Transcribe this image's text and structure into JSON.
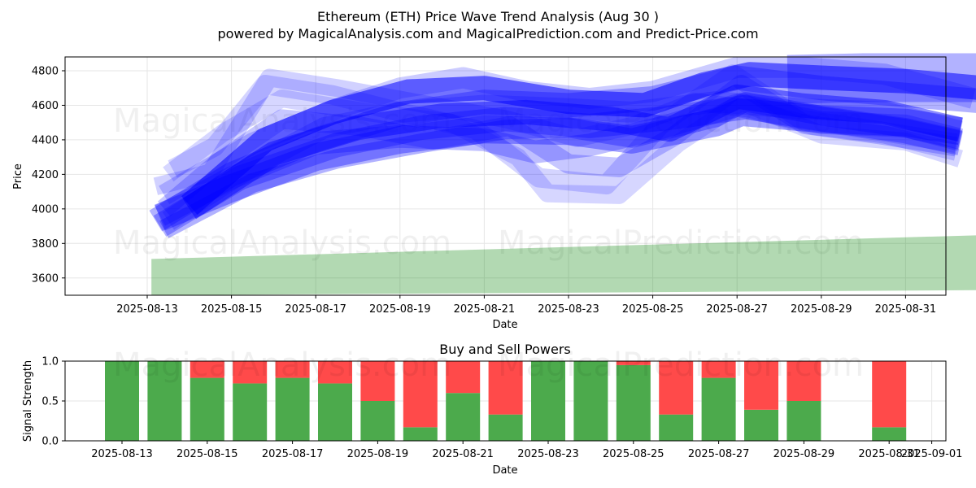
{
  "chart_data": [
    {
      "type": "area",
      "title_line1": "Ethereum (ETH) Price Wave Trend Analysis (Aug 30 )",
      "title_line2": "powered by MagicalAnalysis.com and MagicalPrediction.com and Predict-Price.com",
      "xlabel": "Date",
      "ylabel": "Price",
      "x_ticks": [
        "2025-08-13",
        "2025-08-15",
        "2025-08-17",
        "2025-08-19",
        "2025-08-21",
        "2025-08-23",
        "2025-08-25",
        "2025-08-27",
        "2025-08-29",
        "2025-08-31"
      ],
      "y_ticks": [
        "3600",
        "3800",
        "4000",
        "4200",
        "4400",
        "4600",
        "4800"
      ],
      "ylim": [
        3500,
        4880
      ],
      "xlim_days": [
        -0.25,
        20.3
      ],
      "grid": true,
      "watermarks": [
        "MagicalAnalysis.com",
        "MagicalPrediction.com"
      ],
      "band_color": "#0000ff",
      "trend_color": "#008000",
      "bands": [
        {
          "opacity": 0.18,
          "width": 22,
          "points": [
            [
              0.2,
              4130
            ],
            [
              1.5,
              4210
            ],
            [
              2.9,
              4760
            ],
            [
              4.5,
              4700
            ],
            [
              6.5,
              4610
            ],
            [
              8.5,
              4520
            ],
            [
              10.2,
              4410
            ],
            [
              11.5,
              4480
            ],
            [
              13,
              4620
            ],
            [
              14.3,
              4580
            ],
            [
              15.8,
              4480
            ],
            [
              17.5,
              4430
            ],
            [
              19.2,
              4330
            ]
          ]
        },
        {
          "opacity": 0.17,
          "width": 24,
          "points": [
            [
              0.6,
              4230
            ],
            [
              1.6,
              4360
            ],
            [
              2.8,
              4720
            ],
            [
              4.4,
              4660
            ],
            [
              6,
              4560
            ],
            [
              7.8,
              4460
            ],
            [
              9.3,
              4180
            ],
            [
              10.9,
              4140
            ],
            [
              12.2,
              4490
            ],
            [
              13.9,
              4780
            ],
            [
              15.5,
              4520
            ],
            [
              17.4,
              4450
            ],
            [
              19.2,
              4380
            ]
          ]
        },
        {
          "opacity": 0.16,
          "width": 22,
          "points": [
            [
              0.5,
              4200
            ],
            [
              1.8,
              4440
            ],
            [
              3.2,
              4640
            ],
            [
              5.2,
              4560
            ],
            [
              7.2,
              4500
            ],
            [
              8.8,
              4300
            ],
            [
              9.5,
              4090
            ],
            [
              11.2,
              4080
            ],
            [
              12.6,
              4380
            ],
            [
              14.1,
              4620
            ],
            [
              16,
              4430
            ],
            [
              18,
              4390
            ],
            [
              19.3,
              4290
            ]
          ]
        },
        {
          "opacity": 0.22,
          "width": 24,
          "points": [
            [
              0.4,
              4000
            ],
            [
              1.7,
              4270
            ],
            [
              3.2,
              4520
            ],
            [
              5,
              4480
            ],
            [
              6.8,
              4400
            ],
            [
              8.6,
              4480
            ],
            [
              10,
              4260
            ],
            [
              11.2,
              4240
            ],
            [
              12.5,
              4420
            ],
            [
              14.1,
              4720
            ],
            [
              15.6,
              4490
            ],
            [
              17.4,
              4430
            ],
            [
              19.2,
              4360
            ]
          ]
        },
        {
          "opacity": 0.25,
          "width": 28,
          "points": [
            [
              0.3,
              3960
            ],
            [
              2,
              4180
            ],
            [
              4,
              4380
            ],
            [
              6,
              4420
            ],
            [
              8,
              4400
            ],
            [
              9.2,
              4330
            ],
            [
              10.5,
              4370
            ],
            [
              12.2,
              4470
            ],
            [
              14,
              4600
            ],
            [
              16,
              4500
            ],
            [
              18,
              4480
            ],
            [
              19.3,
              4400
            ]
          ]
        },
        {
          "opacity": 0.2,
          "width": 26,
          "points": [
            [
              0.5,
              3930
            ],
            [
              2.5,
              4250
            ],
            [
              4.2,
              4470
            ],
            [
              6,
              4560
            ],
            [
              8,
              4600
            ],
            [
              10,
              4580
            ],
            [
              11.5,
              4560
            ],
            [
              13.5,
              4620
            ],
            [
              15.5,
              4580
            ],
            [
              17.5,
              4560
            ],
            [
              19.3,
              4450
            ]
          ]
        },
        {
          "opacity": 0.2,
          "width": 26,
          "points": [
            [
              0.4,
              4080
            ],
            [
              2.5,
              4380
            ],
            [
              4.5,
              4580
            ],
            [
              6,
              4700
            ],
            [
              7.5,
              4760
            ],
            [
              9,
              4680
            ],
            [
              10.5,
              4640
            ],
            [
              12,
              4680
            ],
            [
              14,
              4820
            ],
            [
              15.5,
              4820
            ],
            [
              17.5,
              4780
            ],
            [
              19.6,
              4640
            ]
          ]
        },
        {
          "opacity": 0.3,
          "width": 30,
          "points": [
            [
              0.2,
              3930
            ],
            [
              2,
              4200
            ],
            [
              4,
              4400
            ],
            [
              6,
              4550
            ],
            [
              8,
              4620
            ],
            [
              10,
              4600
            ],
            [
              12,
              4640
            ],
            [
              14,
              4760
            ],
            [
              16,
              4700
            ],
            [
              18,
              4660
            ],
            [
              20,
              4620
            ]
          ]
        },
        {
          "opacity": 0.35,
          "width": 34,
          "points": [
            [
              0.3,
              3950
            ],
            [
              2,
              4120
            ],
            [
              4,
              4300
            ],
            [
              6,
              4400
            ],
            [
              8,
              4460
            ],
            [
              10,
              4450
            ],
            [
              11.5,
              4400
            ],
            [
              13.5,
              4500
            ],
            [
              14.1,
              4560
            ],
            [
              16,
              4520
            ],
            [
              18,
              4500
            ],
            [
              19.3,
              4450
            ]
          ]
        },
        {
          "opacity": 0.3,
          "width": 30,
          "points": [
            [
              0.3,
              3900
            ],
            [
              2.2,
              4180
            ],
            [
              4.5,
              4370
            ],
            [
              6.5,
              4470
            ],
            [
              8.5,
              4520
            ],
            [
              10.5,
              4480
            ],
            [
              12.5,
              4530
            ],
            [
              14.2,
              4590
            ],
            [
              16,
              4520
            ],
            [
              18,
              4450
            ],
            [
              19.3,
              4380
            ]
          ]
        },
        {
          "opacity": 0.3,
          "width": 24,
          "points": [
            [
              0.4,
              3880
            ],
            [
              2.5,
              4150
            ],
            [
              4.5,
              4290
            ],
            [
              6.5,
              4380
            ],
            [
              8.5,
              4460
            ],
            [
              10,
              4470
            ],
            [
              11.5,
              4410
            ],
            [
              13.5,
              4530
            ],
            [
              14.2,
              4620
            ],
            [
              16,
              4540
            ],
            [
              18,
              4470
            ],
            [
              19.3,
              4400
            ]
          ]
        },
        {
          "opacity": 0.55,
          "width": 30,
          "points": [
            [
              1,
              4020
            ],
            [
              2.8,
              4400
            ],
            [
              4.4,
              4560
            ],
            [
              6.2,
              4680
            ],
            [
              8,
              4700
            ],
            [
              10,
              4620
            ],
            [
              11.8,
              4600
            ],
            [
              13.2,
              4720
            ],
            [
              14.3,
              4780
            ],
            [
              16,
              4760
            ],
            [
              18,
              4740
            ],
            [
              19.8,
              4700
            ]
          ]
        },
        {
          "opacity": 0.45,
          "width": 30,
          "points": [
            [
              1,
              4000
            ],
            [
              3,
              4320
            ],
            [
              5,
              4470
            ],
            [
              7,
              4540
            ],
            [
              9,
              4560
            ],
            [
              11,
              4520
            ],
            [
              12.4,
              4460
            ],
            [
              14,
              4650
            ],
            [
              15.5,
              4600
            ],
            [
              17.5,
              4560
            ],
            [
              19.3,
              4460
            ]
          ]
        },
        {
          "opacity": 0.3,
          "width": 60,
          "points": [
            [
              15.2,
              4750
            ],
            [
              17,
              4760
            ],
            [
              19.8,
              4760
            ]
          ]
        }
      ],
      "trend_band": {
        "x0": 0.1,
        "x1": 20.1,
        "top_start": 3710,
        "top_end": 3850,
        "bottom_start": 3490,
        "bottom_end": 3530,
        "opacity": 0.3
      }
    },
    {
      "type": "bar",
      "title": "Buy and Sell Powers",
      "xlabel": "Date",
      "ylabel": "Signal Strength",
      "ylim": [
        0,
        1.0
      ],
      "y_ticks": [
        "0.0",
        "0.5",
        "1.0"
      ],
      "x_ticks": [
        "2025-08-13",
        "2025-08-15",
        "2025-08-17",
        "2025-08-19",
        "2025-08-21",
        "2025-08-23",
        "2025-08-25",
        "2025-08-27",
        "2025-08-29",
        "2025-08-31",
        "2025-09-01"
      ],
      "categories": [
        "2025-08-13",
        "2025-08-14",
        "2025-08-15",
        "2025-08-16",
        "2025-08-17",
        "2025-08-18",
        "2025-08-19",
        "2025-08-20",
        "2025-08-21",
        "2025-08-22",
        "2025-08-23",
        "2025-08-24",
        "2025-08-25",
        "2025-08-26",
        "2025-08-27",
        "2025-08-28",
        "2025-08-29",
        "2025-08-31"
      ],
      "series": [
        {
          "name": "Buy",
          "color": "#4caa4c",
          "values": [
            1.0,
            1.0,
            0.79,
            0.72,
            0.79,
            0.72,
            0.5,
            0.17,
            0.6,
            0.33,
            1.0,
            1.0,
            0.95,
            0.33,
            0.79,
            0.39,
            0.5,
            0.17
          ]
        },
        {
          "name": "Sell",
          "color": "#ff4a4a",
          "values": [
            0.0,
            0.0,
            0.21,
            0.28,
            0.21,
            0.28,
            0.5,
            0.83,
            0.4,
            0.67,
            0.0,
            0.0,
            0.05,
            0.67,
            0.21,
            0.61,
            0.5,
            0.83
          ]
        }
      ],
      "grid": true
    }
  ]
}
